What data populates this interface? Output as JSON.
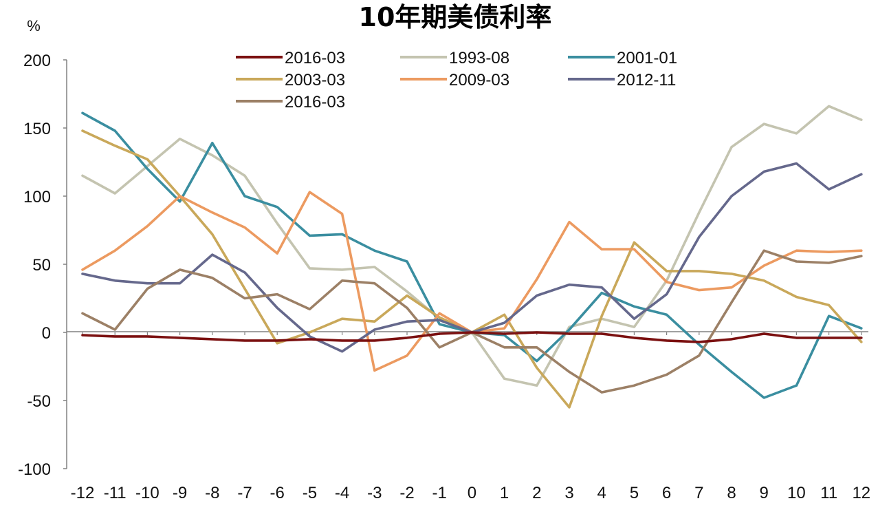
{
  "chart_data": {
    "type": "line",
    "title": "10年期美债利率",
    "ylabel": "%",
    "xlabel": "",
    "x": [
      -12,
      -11,
      -10,
      -9,
      -8,
      -7,
      -6,
      -5,
      -4,
      -3,
      -2,
      -1,
      0,
      1,
      2,
      3,
      4,
      5,
      6,
      7,
      8,
      9,
      10,
      11,
      12
    ],
    "x_tick_labels": [
      "-12",
      "-11",
      "-10",
      "-9",
      "-8",
      "-7",
      "-6",
      "-5",
      "-4",
      "-3",
      "-2",
      "-1",
      "0",
      "1",
      "2",
      "3",
      "4",
      "5",
      "6",
      "7",
      "8",
      "9",
      "10",
      "11",
      "12"
    ],
    "ylim": [
      -100,
      200
    ],
    "y_ticks": [
      -100,
      -50,
      0,
      50,
      100,
      150,
      200
    ],
    "y_tick_labels": [
      "-100",
      "-50",
      "0",
      "50",
      "100",
      "150",
      "200"
    ],
    "grid": false,
    "legend_position": "top",
    "series": [
      {
        "name": "2016-03",
        "color": "#7b1010",
        "values": [
          -2,
          -3,
          -3,
          -4,
          -5,
          -6,
          -6,
          -5,
          -6,
          -6,
          -4,
          -1,
          0,
          -1,
          0,
          -1,
          -1,
          -4,
          -6,
          -7,
          -5,
          -1,
          -4,
          -4,
          -4
        ]
      },
      {
        "name": "1993-08",
        "color": "#c4c4b0",
        "values": [
          115,
          102,
          122,
          142,
          130,
          115,
          80,
          47,
          46,
          48,
          30,
          10,
          0,
          -34,
          -39,
          4,
          10,
          4,
          38,
          88,
          136,
          153,
          146,
          166,
          156
        ]
      },
      {
        "name": "2001-01",
        "color": "#3a8ea0",
        "values": [
          161,
          148,
          120,
          96,
          139,
          100,
          92,
          71,
          72,
          60,
          52,
          6,
          0,
          -2,
          -21,
          2,
          29,
          19,
          13,
          -9,
          -29,
          -48,
          -39,
          12,
          3
        ]
      },
      {
        "name": "2003-03",
        "color": "#c9a85a",
        "values": [
          148,
          137,
          127,
          100,
          72,
          32,
          -8,
          0,
          10,
          8,
          27,
          11,
          0,
          13,
          -26,
          -55,
          12,
          66,
          45,
          45,
          43,
          38,
          26,
          20,
          -7
        ]
      },
      {
        "name": "2009-03",
        "color": "#ec9a60",
        "values": [
          46,
          60,
          78,
          100,
          88,
          77,
          58,
          103,
          87,
          -28,
          -17,
          14,
          0,
          3,
          39,
          81,
          61,
          61,
          37,
          31,
          33,
          49,
          60,
          59,
          60
        ]
      },
      {
        "name": "2012-11",
        "color": "#65688c",
        "values": [
          43,
          38,
          36,
          36,
          57,
          44,
          18,
          -3,
          -14,
          2,
          8,
          9,
          0,
          7,
          27,
          35,
          33,
          10,
          28,
          70,
          100,
          118,
          124,
          105,
          116
        ]
      },
      {
        "name": "2016-03",
        "color": "#9c8066",
        "values": [
          14,
          2,
          32,
          46,
          40,
          25,
          28,
          17,
          38,
          36,
          18,
          -11,
          0,
          -11,
          -11,
          -29,
          -44,
          -39,
          -31,
          -17,
          22,
          60,
          52,
          51,
          56
        ]
      }
    ]
  }
}
